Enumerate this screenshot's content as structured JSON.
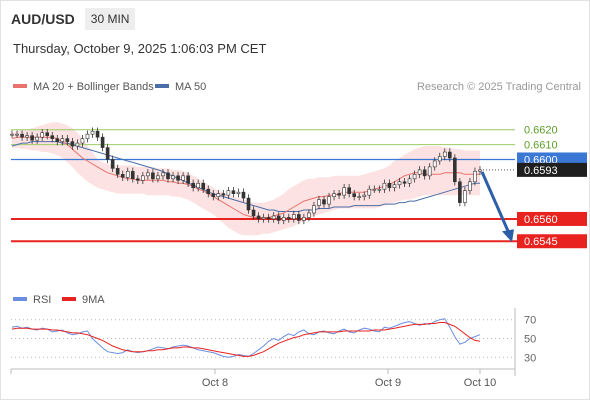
{
  "header": {
    "symbol": "AUD/USD",
    "timeframe": "30 MIN",
    "datetime": "Thursday, October 9, 2025 1:06:03 PM CET"
  },
  "legend": {
    "ma20_label": "MA 20 + Bollinger Bands",
    "ma50_label": "MA 50",
    "credit": "Research © 2025 Trading Central",
    "rsi_label": "RSI",
    "ma9_label": "9MA"
  },
  "colors": {
    "ma20": "#e8736c",
    "bands_fill": "#fbd6d6",
    "ma50": "#4a6fa8",
    "current_line": "#3b78d6",
    "support": "#e8231f",
    "resistance": "#9ccc65",
    "resistance_text": "#5c9e2a",
    "arrow": "#2d5ea8",
    "rsi": "#6b8fe0",
    "ma9": "#e8231f",
    "candle": "#333333"
  },
  "chart_data": [
    {
      "type": "line",
      "title": "AUD/USD",
      "timeframe": "30 MIN",
      "ylim": [
        0.6527,
        0.664
      ],
      "x_ticks": [
        "Oct 8",
        "Oct 9",
        "Oct 10"
      ],
      "levels": [
        {
          "name": "resistance-2",
          "value": 0.662,
          "label": "0.6620",
          "style": "resistance"
        },
        {
          "name": "resistance-1",
          "value": 0.661,
          "label": "0.6610",
          "style": "resistance"
        },
        {
          "name": "pivot",
          "value": 0.66,
          "label": "0.6600",
          "style": "pivot"
        },
        {
          "name": "current",
          "value": 0.6593,
          "label": "0.6593",
          "style": "current"
        },
        {
          "name": "support-1",
          "value": 0.656,
          "label": "0.6560",
          "style": "support"
        },
        {
          "name": "support-2",
          "value": 0.6545,
          "label": "0.6545",
          "style": "support"
        }
      ],
      "price": [
        0.6617,
        0.6617,
        0.6615,
        0.6616,
        0.6613,
        0.6615,
        0.6618,
        0.6616,
        0.6614,
        0.6612,
        0.6614,
        0.6612,
        0.6609,
        0.6611,
        0.6614,
        0.6617,
        0.6619,
        0.6615,
        0.6608,
        0.66,
        0.6594,
        0.659,
        0.6588,
        0.6592,
        0.6587,
        0.6586,
        0.6589,
        0.6591,
        0.6587,
        0.6589,
        0.6591,
        0.6587,
        0.6589,
        0.6586,
        0.6589,
        0.6584,
        0.6581,
        0.6584,
        0.658,
        0.6577,
        0.6575,
        0.6577,
        0.6576,
        0.6579,
        0.6577,
        0.6578,
        0.6574,
        0.6566,
        0.6562,
        0.656,
        0.6561,
        0.656,
        0.6562,
        0.6559,
        0.6561,
        0.656,
        0.6563,
        0.6559,
        0.6561,
        0.6564,
        0.6569,
        0.6573,
        0.657,
        0.6575,
        0.6577,
        0.6576,
        0.6581,
        0.6577,
        0.6575,
        0.6575,
        0.6576,
        0.658,
        0.658,
        0.658,
        0.6584,
        0.6581,
        0.6583,
        0.6585,
        0.6584,
        0.6587,
        0.659,
        0.6593,
        0.6589,
        0.6595,
        0.6599,
        0.6602,
        0.6605,
        0.6601,
        0.6585,
        0.6571,
        0.6579,
        0.6585,
        0.6592,
        0.6593
      ],
      "ma20": [
        0.6614,
        0.6615,
        0.6615,
        0.6615,
        0.6615,
        0.6615,
        0.6615,
        0.6615,
        0.6615,
        0.6614,
        0.6612,
        0.661,
        0.6607,
        0.6604,
        0.6601,
        0.6599,
        0.6597,
        0.6595,
        0.6593,
        0.6591,
        0.659,
        0.6589,
        0.6588,
        0.6587,
        0.6587,
        0.6586,
        0.6586,
        0.6586,
        0.6586,
        0.6586,
        0.6586,
        0.6585,
        0.6585,
        0.6584,
        0.6584,
        0.6583,
        0.6582,
        0.658,
        0.6579,
        0.6577,
        0.6575,
        0.6573,
        0.6571,
        0.6569,
        0.6567,
        0.6565,
        0.6563,
        0.6562,
        0.6561,
        0.6561,
        0.6561,
        0.6561,
        0.6562,
        0.6563,
        0.6564,
        0.6566,
        0.6568,
        0.657,
        0.6572,
        0.6573,
        0.6574,
        0.6575,
        0.6575,
        0.6576,
        0.6576,
        0.6577,
        0.6578,
        0.6578,
        0.6578,
        0.6578,
        0.6578,
        0.6579,
        0.658,
        0.6581,
        0.6582,
        0.6583,
        0.6585,
        0.6587,
        0.6589,
        0.659,
        0.6591,
        0.6591,
        0.659,
        0.659,
        0.659,
        0.659,
        0.6591,
        0.6591,
        0.6591,
        0.6591,
        0.659,
        0.659,
        0.659,
        0.659
      ],
      "bb_upper": [
        0.6618,
        0.6619,
        0.662,
        0.662,
        0.6621,
        0.6622,
        0.6623,
        0.6624,
        0.6625,
        0.6625,
        0.6624,
        0.6623,
        0.6621,
        0.6618,
        0.6614,
        0.6609,
        0.6605,
        0.66,
        0.6598,
        0.6597,
        0.6596,
        0.6596,
        0.6596,
        0.6596,
        0.6596,
        0.6595,
        0.6595,
        0.6595,
        0.6595,
        0.6594,
        0.6594,
        0.6594,
        0.6593,
        0.6593,
        0.6592,
        0.6591,
        0.6589,
        0.6587,
        0.6585,
        0.6583,
        0.6581,
        0.6579,
        0.6578,
        0.6576,
        0.6575,
        0.6574,
        0.6573,
        0.6572,
        0.6571,
        0.6571,
        0.6571,
        0.6572,
        0.6573,
        0.6575,
        0.6577,
        0.658,
        0.6582,
        0.6584,
        0.6586,
        0.6587,
        0.6587,
        0.6588,
        0.6588,
        0.6588,
        0.6589,
        0.6589,
        0.6589,
        0.6589,
        0.6589,
        0.6589,
        0.659,
        0.6591,
        0.6592,
        0.6593,
        0.6594,
        0.6596,
        0.6599,
        0.6601,
        0.6603,
        0.6605,
        0.6607,
        0.6608,
        0.6609,
        0.6609,
        0.6609,
        0.6609,
        0.6608,
        0.6608,
        0.6607,
        0.6607,
        0.6606,
        0.6606,
        0.6606,
        0.6606
      ],
      "bb_lower": [
        0.6608,
        0.6608,
        0.6607,
        0.6607,
        0.6606,
        0.6606,
        0.6605,
        0.6605,
        0.6604,
        0.6603,
        0.6601,
        0.6598,
        0.6595,
        0.6591,
        0.6588,
        0.6585,
        0.6583,
        0.6581,
        0.658,
        0.6579,
        0.6578,
        0.6577,
        0.6577,
        0.6577,
        0.6577,
        0.6577,
        0.6577,
        0.6576,
        0.6576,
        0.6576,
        0.6576,
        0.6576,
        0.6575,
        0.6575,
        0.6574,
        0.6573,
        0.6571,
        0.6569,
        0.6567,
        0.6565,
        0.6563,
        0.656,
        0.6557,
        0.6554,
        0.6552,
        0.655,
        0.6549,
        0.6549,
        0.6549,
        0.6549,
        0.655,
        0.655,
        0.6551,
        0.6552,
        0.6553,
        0.6554,
        0.6555,
        0.6557,
        0.6558,
        0.656,
        0.6562,
        0.6563,
        0.6564,
        0.6565,
        0.6566,
        0.6567,
        0.6567,
        0.6567,
        0.6567,
        0.6567,
        0.6567,
        0.6567,
        0.6567,
        0.6568,
        0.6569,
        0.657,
        0.6571,
        0.6572,
        0.6573,
        0.6573,
        0.6574,
        0.6575,
        0.6576,
        0.6576,
        0.6576,
        0.6576,
        0.6576,
        0.6576,
        0.6576,
        0.6576,
        0.6576,
        0.6576,
        0.6576,
        0.6576
      ],
      "ma50": [
        0.6609,
        0.661,
        0.6611,
        0.6611,
        0.6612,
        0.6612,
        0.6612,
        0.6612,
        0.6612,
        0.6612,
        0.6611,
        0.6611,
        0.661,
        0.6609,
        0.6608,
        0.6607,
        0.6606,
        0.6605,
        0.6604,
        0.6603,
        0.6602,
        0.6601,
        0.66,
        0.6599,
        0.6598,
        0.6597,
        0.6596,
        0.6595,
        0.6594,
        0.6593,
        0.6592,
        0.659,
        0.6589,
        0.6587,
        0.6586,
        0.6584,
        0.6583,
        0.6581,
        0.658,
        0.6578,
        0.6577,
        0.6576,
        0.6575,
        0.6574,
        0.6573,
        0.6572,
        0.6571,
        0.657,
        0.6569,
        0.6568,
        0.6567,
        0.6566,
        0.6566,
        0.6565,
        0.6565,
        0.6565,
        0.6565,
        0.6565,
        0.6566,
        0.6566,
        0.6566,
        0.6567,
        0.6567,
        0.6567,
        0.6568,
        0.6568,
        0.6568,
        0.6568,
        0.6569,
        0.6569,
        0.6569,
        0.6569,
        0.6569,
        0.6569,
        0.657,
        0.657,
        0.657,
        0.6571,
        0.6571,
        0.6572,
        0.6572,
        0.6573,
        0.6574,
        0.6575,
        0.6576,
        0.6577,
        0.6578,
        0.6579,
        0.658,
        0.6581,
        0.6582,
        0.6583,
        0.6584,
        0.6584
      ],
      "projection": {
        "from": 0.6593,
        "to": 0.6545
      }
    },
    {
      "type": "line",
      "title": "RSI",
      "ylim": [
        25,
        75
      ],
      "y_ticks": [
        70,
        50,
        30
      ],
      "rsi": [
        62,
        63,
        61,
        62,
        60,
        59,
        61,
        60,
        57,
        58,
        59,
        56,
        54,
        55,
        57,
        58,
        50,
        45,
        40,
        36,
        35,
        34,
        35,
        38,
        36,
        35,
        36,
        37,
        39,
        41,
        40,
        39,
        41,
        42,
        43,
        42,
        40,
        38,
        37,
        36,
        35,
        33,
        31,
        30,
        31,
        33,
        32,
        31,
        34,
        38,
        42,
        47,
        50,
        48,
        52,
        55,
        53,
        57,
        59,
        55,
        54,
        57,
        58,
        56,
        55,
        58,
        60,
        57,
        56,
        59,
        61,
        60,
        58,
        57,
        62,
        61,
        63,
        65,
        67,
        68,
        66,
        64,
        66,
        65,
        68,
        70,
        71,
        62,
        52,
        44,
        46,
        50,
        52,
        54
      ],
      "ma9": [
        60,
        61,
        61,
        61,
        60,
        60,
        60,
        60,
        59,
        59,
        58,
        57,
        56,
        56,
        55,
        54,
        52,
        50,
        48,
        45,
        42,
        40,
        38,
        37,
        36,
        36,
        36,
        37,
        37,
        38,
        38,
        39,
        40,
        40,
        41,
        41,
        40,
        40,
        39,
        38,
        37,
        36,
        35,
        34,
        33,
        32,
        31,
        31,
        32,
        34,
        36,
        39,
        42,
        45,
        47,
        49,
        51,
        52,
        54,
        55,
        56,
        57,
        57,
        57,
        57,
        57,
        58,
        58,
        58,
        58,
        58,
        58,
        59,
        59,
        59,
        60,
        61,
        62,
        63,
        64,
        65,
        65,
        65,
        66,
        66,
        67,
        67,
        65,
        63,
        59,
        55,
        51,
        48,
        47
      ]
    }
  ]
}
